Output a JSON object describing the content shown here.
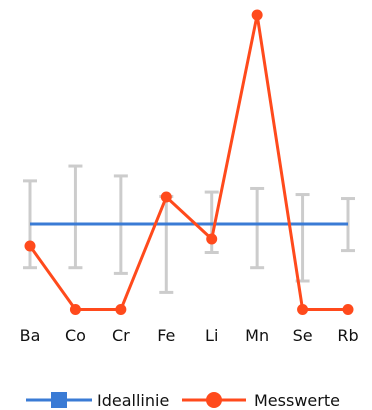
{
  "chart_data": {
    "type": "line",
    "title": "",
    "xlabel": "",
    "ylabel": "",
    "categories": [
      "Ba",
      "Co",
      "Cr",
      "Fe",
      "Li",
      "Mn",
      "Se",
      "Rb"
    ],
    "ylim": [
      -1.0,
      1.0
    ],
    "series": [
      {
        "name": "Ideallinie",
        "color": "#3a7bd5",
        "values": [
          0,
          0,
          0,
          0,
          0,
          0,
          0,
          0
        ]
      },
      {
        "name": "Messwerte",
        "color": "#ff4a1c",
        "values": [
          -0.116,
          -0.45,
          -0.45,
          0.142,
          -0.079,
          1.1,
          -0.45,
          -0.45
        ]
      }
    ],
    "error_bars": {
      "color": "#cccccc",
      "ranges": [
        [
          -0.23,
          0.227
        ],
        [
          -0.23,
          0.305
        ],
        [
          -0.26,
          0.253
        ],
        [
          -0.36,
          0.145
        ],
        [
          -0.15,
          0.168
        ],
        [
          -0.23,
          0.187
        ],
        [
          -0.3,
          0.155
        ],
        [
          -0.14,
          0.134
        ]
      ]
    },
    "grid": false,
    "legend_position": "bottom"
  },
  "legend": {
    "items": [
      "Ideallinie",
      "Messwerte"
    ]
  }
}
